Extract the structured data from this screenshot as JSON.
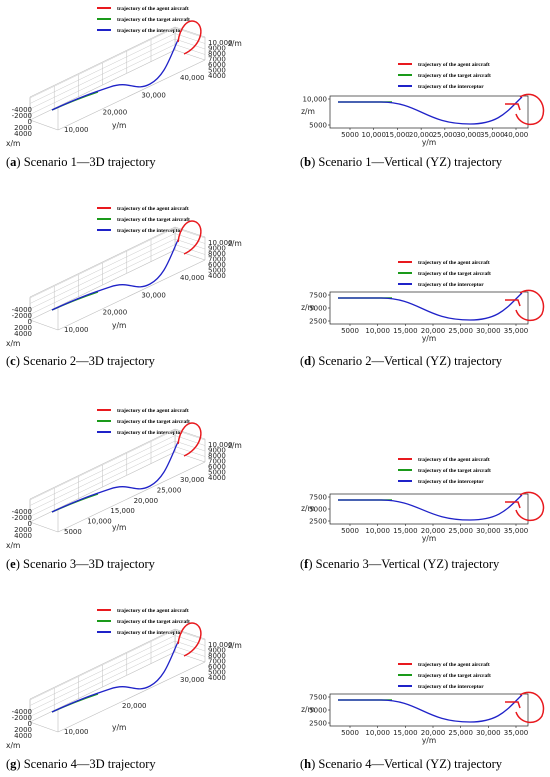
{
  "legend": {
    "agent": "trajectory of the agent aircraft",
    "target": "trajectory of the target aircraft",
    "interceptor": "trajectory of the interceptor"
  },
  "colors": {
    "agent": "#e8191e",
    "target": "#1a9a1a",
    "interceptor": "#1f22c8"
  },
  "panels": [
    {
      "id": "a",
      "letter": "a",
      "caption": " Scenario 1—3D trajectory",
      "view": "3d",
      "x_ticks": [
        "-4000",
        "-2000",
        "0",
        "2000",
        "4000"
      ],
      "x_label": "x/m",
      "y_ticks": [
        "10,000",
        "20,000",
        "30,000",
        "40,000"
      ],
      "y_label": "y/m",
      "z_ticks": [
        "10,000",
        "9000",
        "8000",
        "7000",
        "6000",
        "5000",
        "4000"
      ],
      "z_label": "z/m"
    },
    {
      "id": "b",
      "letter": "b",
      "caption": " Scenario 1—Vertical (YZ) trajectory",
      "view": "yz",
      "y_ticks": [
        "10,000",
        "5000"
      ],
      "y_label": "z/m",
      "x_ticks": [
        "5000",
        "10,000",
        "15,000",
        "20,000",
        "25,000",
        "30,000",
        "35,000",
        "40,000"
      ],
      "x_label": "y/m"
    },
    {
      "id": "c",
      "letter": "c",
      "caption": " Scenario 2—3D trajectory",
      "view": "3d",
      "x_ticks": [
        "-4000",
        "-2000",
        "0",
        "2000",
        "4000"
      ],
      "x_label": "x/m",
      "y_ticks": [
        "10,000",
        "20,000",
        "30,000",
        "40,000"
      ],
      "y_label": "y/m",
      "z_ticks": [
        "10,000",
        "9000",
        "8000",
        "7000",
        "6000",
        "5000",
        "4000"
      ],
      "z_label": "z/m"
    },
    {
      "id": "d",
      "letter": "d",
      "caption": " Scenario 2—Vertical (YZ) trajectory",
      "view": "yz",
      "y_ticks": [
        "7500",
        "5000",
        "2500"
      ],
      "y_label": "z/m",
      "x_ticks": [
        "5000",
        "10,000",
        "15,000",
        "20,000",
        "25,000",
        "30,000",
        "35,000"
      ],
      "x_label": "y/m"
    },
    {
      "id": "e",
      "letter": "e",
      "caption": " Scenario 3—3D trajectory",
      "view": "3d",
      "x_ticks": [
        "-4000",
        "-2000",
        "0",
        "2000",
        "4000"
      ],
      "x_label": "x/m",
      "y_ticks": [
        "5000",
        "10,000",
        "15,000",
        "20,000",
        "25,000",
        "30,000"
      ],
      "y_label": "y/m",
      "z_ticks": [
        "10,000",
        "9000",
        "8000",
        "7000",
        "6000",
        "5000",
        "4000"
      ],
      "z_label": "z/m"
    },
    {
      "id": "f",
      "letter": "f",
      "caption": " Scenario 3—Vertical (YZ) trajectory",
      "view": "yz",
      "y_ticks": [
        "7500",
        "5000",
        "2500"
      ],
      "y_label": "z/m",
      "x_ticks": [
        "5000",
        "10,000",
        "15,000",
        "20,000",
        "25,000",
        "30,000",
        "35,000"
      ],
      "x_label": "y/m"
    },
    {
      "id": "g",
      "letter": "g",
      "caption": " Scenario 4—3D trajectory",
      "view": "3d",
      "x_ticks": [
        "-4000",
        "-2000",
        "0",
        "2000",
        "4000"
      ],
      "x_label": "x/m",
      "y_ticks": [
        "10,000",
        "20,000",
        "30,000"
      ],
      "y_label": "y/m",
      "z_ticks": [
        "10,000",
        "9000",
        "8000",
        "7000",
        "6000",
        "5000",
        "4000"
      ],
      "z_label": "z/m"
    },
    {
      "id": "h",
      "letter": "h",
      "caption": " Scenario 4—Vertical (YZ) trajectory",
      "view": "yz",
      "y_ticks": [
        "7500",
        "5000",
        "2500"
      ],
      "y_label": "z/m",
      "x_ticks": [
        "5000",
        "10,000",
        "15,000",
        "20,000",
        "25,000",
        "30,000",
        "35,000"
      ],
      "x_label": "y/m"
    }
  ]
}
